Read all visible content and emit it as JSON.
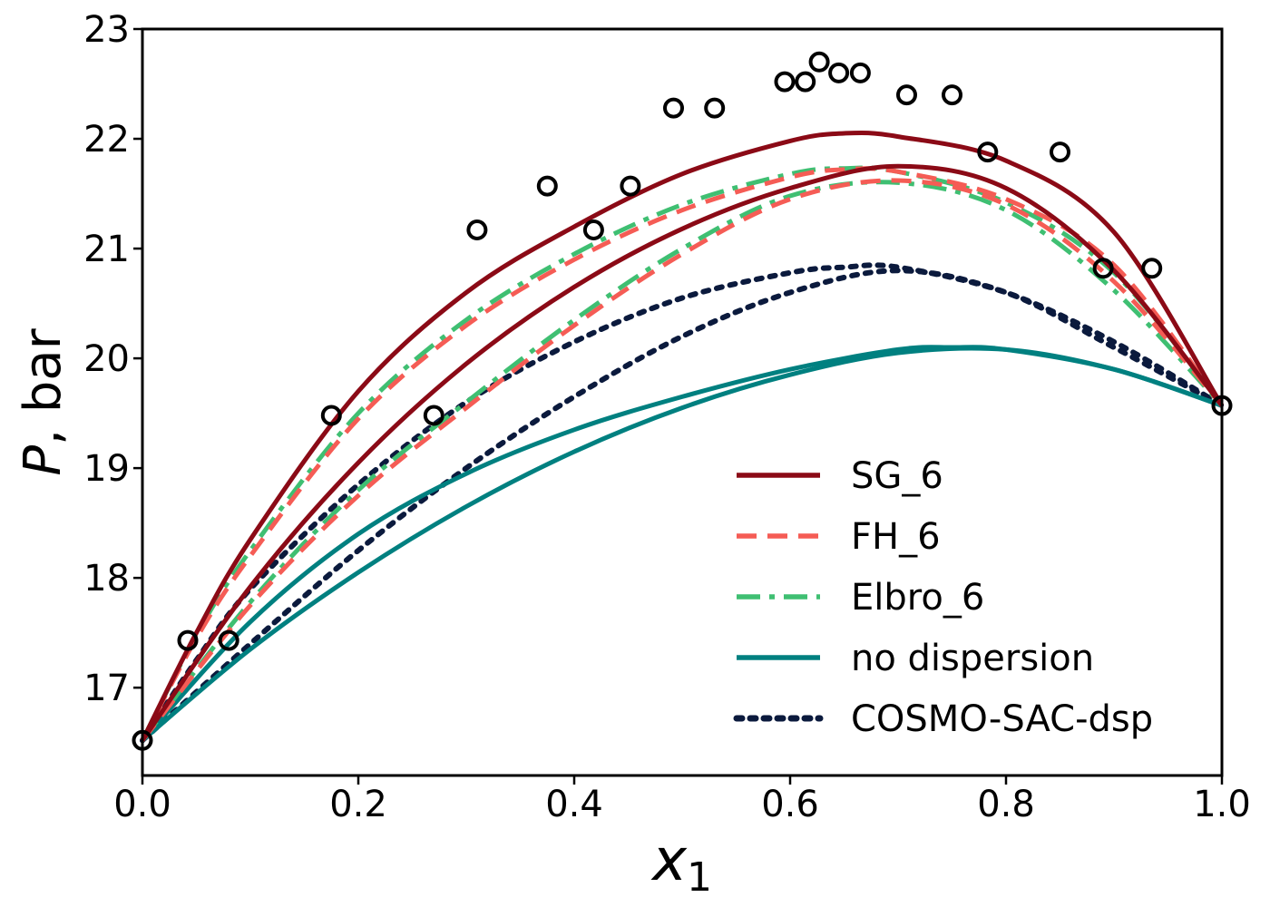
{
  "chart_data": {
    "type": "line",
    "xlim": [
      0.0,
      1.0
    ],
    "ylim": [
      16.2,
      23.0
    ],
    "xticks": [
      0.0,
      0.2,
      0.4,
      0.6,
      0.8,
      1.0
    ],
    "xtick_labels": [
      "0.0",
      "0.2",
      "0.4",
      "0.6",
      "0.8",
      "1.0"
    ],
    "yticks": [
      17,
      18,
      19,
      20,
      21,
      22,
      23
    ],
    "ytick_labels": [
      "17",
      "18",
      "19",
      "20",
      "21",
      "22",
      "23"
    ],
    "xlabel_main": "x",
    "xlabel_sub": "1",
    "ylabel_italic": "P",
    "ylabel_rest": ", bar",
    "grid": false,
    "legend_position": "lower-right",
    "series": [
      {
        "name": "SG_6",
        "color": "#8b0a16",
        "style": "solid",
        "bubble": [
          [
            0.0,
            16.52
          ],
          [
            0.1,
            17.92
          ],
          [
            0.2,
            19.05
          ],
          [
            0.3,
            19.95
          ],
          [
            0.4,
            20.65
          ],
          [
            0.5,
            21.18
          ],
          [
            0.6,
            21.55
          ],
          [
            0.7,
            21.75
          ],
          [
            0.8,
            21.55
          ],
          [
            0.9,
            20.8
          ],
          [
            1.0,
            19.57
          ]
        ],
        "dew": [
          [
            0.0,
            16.52
          ],
          [
            0.05,
            17.5
          ],
          [
            0.1,
            18.35
          ],
          [
            0.2,
            19.7
          ],
          [
            0.3,
            20.6
          ],
          [
            0.4,
            21.2
          ],
          [
            0.5,
            21.68
          ],
          [
            0.6,
            21.98
          ],
          [
            0.65,
            22.05
          ],
          [
            0.7,
            22.02
          ],
          [
            0.8,
            21.8
          ],
          [
            0.9,
            21.15
          ],
          [
            1.0,
            19.57
          ]
        ]
      },
      {
        "name": "FH_6",
        "color": "#f55c55",
        "style": "dashed",
        "bubble": [
          [
            0.0,
            16.52
          ],
          [
            0.1,
            17.75
          ],
          [
            0.2,
            18.75
          ],
          [
            0.3,
            19.55
          ],
          [
            0.4,
            20.3
          ],
          [
            0.5,
            20.95
          ],
          [
            0.6,
            21.45
          ],
          [
            0.7,
            21.62
          ],
          [
            0.8,
            21.4
          ],
          [
            0.9,
            20.7
          ],
          [
            1.0,
            19.57
          ]
        ],
        "dew": [
          [
            0.0,
            16.52
          ],
          [
            0.05,
            17.45
          ],
          [
            0.1,
            18.2
          ],
          [
            0.2,
            19.45
          ],
          [
            0.3,
            20.3
          ],
          [
            0.4,
            20.9
          ],
          [
            0.5,
            21.35
          ],
          [
            0.6,
            21.65
          ],
          [
            0.65,
            21.72
          ],
          [
            0.7,
            21.7
          ],
          [
            0.8,
            21.45
          ],
          [
            0.9,
            20.85
          ],
          [
            1.0,
            19.57
          ]
        ]
      },
      {
        "name": "Elbro_6",
        "color": "#3fbf72",
        "style": "dashdot",
        "bubble": [
          [
            0.0,
            16.52
          ],
          [
            0.1,
            17.78
          ],
          [
            0.2,
            18.8
          ],
          [
            0.3,
            19.6
          ],
          [
            0.4,
            20.35
          ],
          [
            0.5,
            21.0
          ],
          [
            0.6,
            21.48
          ],
          [
            0.7,
            21.6
          ],
          [
            0.8,
            21.35
          ],
          [
            0.9,
            20.62
          ],
          [
            1.0,
            19.57
          ]
        ],
        "dew": [
          [
            0.0,
            16.52
          ],
          [
            0.05,
            17.48
          ],
          [
            0.1,
            18.25
          ],
          [
            0.2,
            19.5
          ],
          [
            0.3,
            20.35
          ],
          [
            0.4,
            20.95
          ],
          [
            0.5,
            21.4
          ],
          [
            0.6,
            21.68
          ],
          [
            0.65,
            21.73
          ],
          [
            0.7,
            21.7
          ],
          [
            0.8,
            21.42
          ],
          [
            0.9,
            20.78
          ],
          [
            1.0,
            19.57
          ]
        ]
      },
      {
        "name": "no dispersion",
        "color": "#008080",
        "style": "solid",
        "bubble": [
          [
            0.0,
            16.52
          ],
          [
            0.1,
            17.35
          ],
          [
            0.2,
            18.05
          ],
          [
            0.3,
            18.65
          ],
          [
            0.4,
            19.15
          ],
          [
            0.5,
            19.55
          ],
          [
            0.6,
            19.85
          ],
          [
            0.7,
            20.05
          ],
          [
            0.8,
            20.08
          ],
          [
            0.9,
            19.9
          ],
          [
            1.0,
            19.57
          ]
        ],
        "dew": [
          [
            0.0,
            16.52
          ],
          [
            0.1,
            17.6
          ],
          [
            0.2,
            18.4
          ],
          [
            0.3,
            18.95
          ],
          [
            0.4,
            19.35
          ],
          [
            0.5,
            19.65
          ],
          [
            0.6,
            19.9
          ],
          [
            0.7,
            20.08
          ],
          [
            0.75,
            20.1
          ],
          [
            0.8,
            20.08
          ],
          [
            0.9,
            19.9
          ],
          [
            1.0,
            19.57
          ]
        ]
      },
      {
        "name": "COSMO-SAC-dsp",
        "color": "#0b1a3d",
        "style": "dotted",
        "bubble": [
          [
            0.0,
            16.52
          ],
          [
            0.1,
            17.4
          ],
          [
            0.2,
            18.25
          ],
          [
            0.3,
            19.0
          ],
          [
            0.4,
            19.65
          ],
          [
            0.5,
            20.2
          ],
          [
            0.6,
            20.6
          ],
          [
            0.7,
            20.8
          ],
          [
            0.8,
            20.6
          ],
          [
            0.9,
            20.1
          ],
          [
            1.0,
            19.57
          ]
        ],
        "dew": [
          [
            0.0,
            16.52
          ],
          [
            0.05,
            17.25
          ],
          [
            0.1,
            17.9
          ],
          [
            0.2,
            18.85
          ],
          [
            0.3,
            19.6
          ],
          [
            0.4,
            20.15
          ],
          [
            0.5,
            20.55
          ],
          [
            0.6,
            20.78
          ],
          [
            0.65,
            20.83
          ],
          [
            0.7,
            20.83
          ],
          [
            0.8,
            20.6
          ],
          [
            0.9,
            20.15
          ],
          [
            1.0,
            19.57
          ]
        ]
      }
    ],
    "experimental": {
      "color": "#000000",
      "points": [
        [
          0.0,
          16.52
        ],
        [
          0.042,
          17.43
        ],
        [
          0.08,
          17.43
        ],
        [
          0.175,
          19.48
        ],
        [
          0.27,
          19.48
        ],
        [
          0.31,
          21.17
        ],
        [
          0.375,
          21.57
        ],
        [
          0.418,
          21.17
        ],
        [
          0.452,
          21.57
        ],
        [
          0.492,
          22.28
        ],
        [
          0.53,
          22.28
        ],
        [
          0.595,
          22.52
        ],
        [
          0.614,
          22.52
        ],
        [
          0.627,
          22.7
        ],
        [
          0.645,
          22.6
        ],
        [
          0.665,
          22.6
        ],
        [
          0.708,
          22.4
        ],
        [
          0.75,
          22.4
        ],
        [
          0.783,
          21.88
        ],
        [
          0.85,
          21.88
        ],
        [
          0.89,
          20.82
        ],
        [
          0.935,
          20.82
        ],
        [
          1.0,
          19.57
        ]
      ]
    }
  }
}
